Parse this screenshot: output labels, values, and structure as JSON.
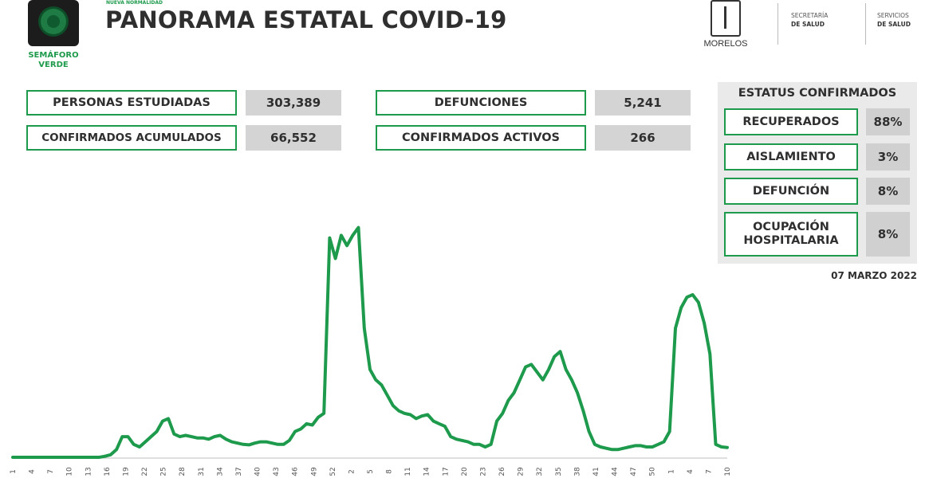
{
  "header": {
    "semaforo_line1": "SEMÁFORO",
    "semaforo_line2": "VERDE",
    "tagline": "NUEVA NORMALIDAD",
    "title": "PANORAMA ESTATAL COVID-19",
    "state_logo": "MORELOS",
    "dept1_line1": "SECRETARÍA",
    "dept1_line2": "DE SALUD",
    "dept2_line1": "SERVICIOS",
    "dept2_line2": "DE SALUD"
  },
  "stats": {
    "personas_label": "PERSONAS ESTUDIADAS",
    "personas_value": "303,389",
    "confirmados_label": "CONFIRMADOS ACUMULADOS",
    "confirmados_value": "66,552",
    "defunciones_label": "DEFUNCIONES",
    "defunciones_value": "5,241",
    "activos_label": "CONFIRMADOS ACTIVOS",
    "activos_value": "266"
  },
  "status": {
    "title": "ESTATUS CONFIRMADOS",
    "recuperados_label": "RECUPERADOS",
    "recuperados_value": "88%",
    "aislamiento_label": "AISLAMIENTO",
    "aislamiento_value": "3%",
    "defuncion_label": "DEFUNCIÓN",
    "defuncion_value": "8%",
    "ocupacion_label_1": "OCUPACIÓN",
    "ocupacion_label_2": "HOSPITALARIA",
    "ocupacion_value": "8%"
  },
  "date": "07 MARZO 2022",
  "colors": {
    "accent": "#1e9a4c",
    "value_bg": "#d4d4d4",
    "panel_bg": "#eaeaea"
  },
  "chart_data": {
    "type": "line",
    "title": "",
    "xlabel": "",
    "ylabel": "",
    "x_ticks": [
      "1",
      "4",
      "7",
      "10",
      "13",
      "16",
      "19",
      "22",
      "25",
      "28",
      "31",
      "34",
      "37",
      "40",
      "43",
      "46",
      "49",
      "52",
      "2",
      "5",
      "8",
      "11",
      "14",
      "17",
      "20",
      "23",
      "26",
      "29",
      "32",
      "35",
      "38",
      "41",
      "44",
      "47",
      "50",
      "1",
      "4",
      "7",
      "10"
    ],
    "series": [
      {
        "color": "#1e9a4c",
        "values": [
          0,
          0,
          0,
          0,
          0,
          0,
          0,
          0,
          0,
          0,
          0,
          0,
          0,
          0,
          0,
          0,
          0.4,
          1,
          3,
          8,
          8,
          5,
          4,
          6,
          8,
          10,
          14,
          15,
          9,
          8,
          8.5,
          8,
          7.5,
          7.5,
          7,
          8,
          8.5,
          7,
          6,
          5.5,
          5,
          4.8,
          5.5,
          6,
          6,
          5.5,
          5,
          5,
          6.5,
          10,
          11,
          13,
          12.5,
          15.5,
          17,
          85,
          77,
          86,
          82,
          86,
          89,
          50,
          34,
          30,
          28,
          24,
          20,
          18,
          17,
          16.5,
          15,
          16,
          16.5,
          14,
          13,
          12,
          8,
          7,
          6.5,
          6,
          5,
          5,
          4,
          5,
          14,
          17,
          22,
          25,
          30,
          35,
          36,
          33,
          30,
          34,
          39,
          41,
          34,
          30,
          25,
          18,
          10,
          5,
          4,
          3.5,
          3,
          3,
          3.5,
          4,
          4.5,
          4.5,
          4,
          4,
          5,
          6,
          10,
          50,
          58,
          62,
          63,
          60,
          52,
          40,
          5,
          4,
          3.8
        ]
      }
    ],
    "ylim": [
      0,
      100
    ],
    "grid": false,
    "legend": "none"
  }
}
